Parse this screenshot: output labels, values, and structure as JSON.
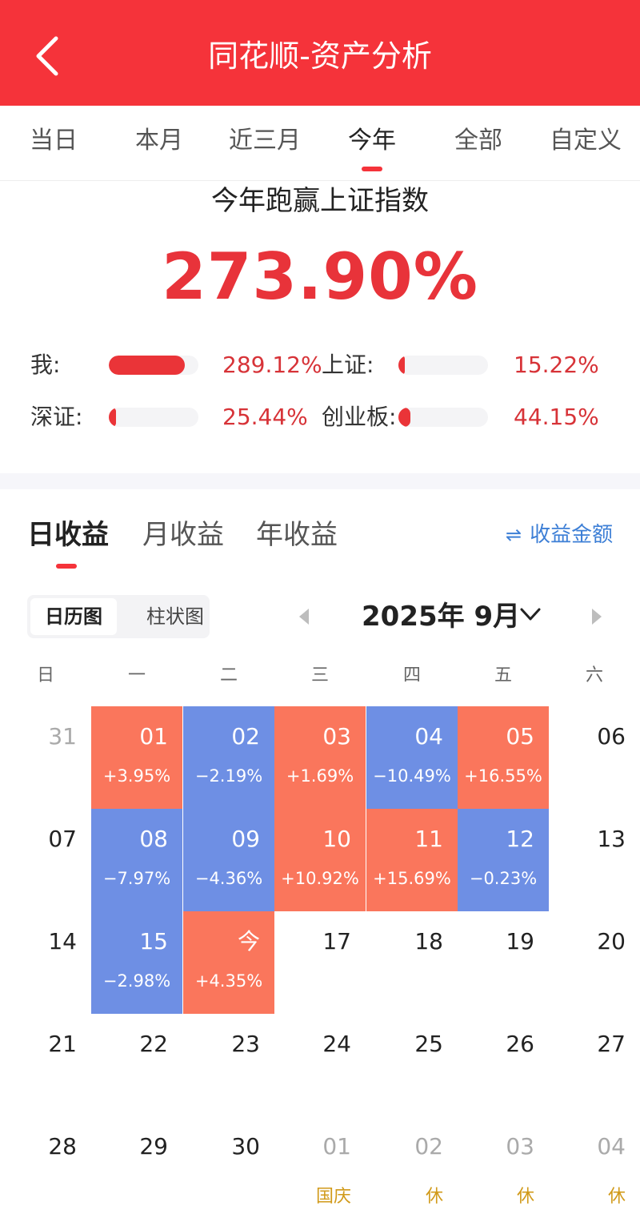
{
  "header": {
    "title": "同花顺-资产分析",
    "back_icon": "chevron-left-icon"
  },
  "period_tabs": [
    "当日",
    "本月",
    "近三月",
    "今年",
    "全部",
    "自定义"
  ],
  "active_period_tab": "今年",
  "summary": {
    "title": "今年跑赢上证指数",
    "value": "273.90%"
  },
  "comparisons": [
    {
      "label": "我:",
      "value": "289.12%",
      "fraction": 0.85
    },
    {
      "label": "上证:",
      "value": "15.22%",
      "fraction": 0.05
    },
    {
      "label": "深证:",
      "value": "25.44%",
      "fraction": 0.08
    },
    {
      "label": "创业板:",
      "value": "44.15%",
      "fraction": 0.13
    }
  ],
  "colors": {
    "accent": "#f5333a",
    "up": "#fa765c",
    "down": "#6e8fe4",
    "value_text": "#d73338",
    "link": "#3d7fd6",
    "holiday": "#d19a1a"
  },
  "return_tabs": [
    "日收益",
    "月收益",
    "年收益"
  ],
  "active_return_tab": "日收益",
  "amount_toggle": {
    "icon": "swap-arrows-icon",
    "label": "收益金额"
  },
  "view_toggle": {
    "calendar": "日历图",
    "bar": "柱状图",
    "active": "日历图"
  },
  "calendar": {
    "month_label": "2025年 9月",
    "weekdays": [
      "日",
      "一",
      "二",
      "三",
      "四",
      "五",
      "六"
    ],
    "weeks": [
      [
        {
          "day": "31",
          "muted": true
        },
        {
          "day": "01",
          "ret": "+3.95%",
          "trend": "up"
        },
        {
          "day": "02",
          "ret": "−2.19%",
          "trend": "down"
        },
        {
          "day": "03",
          "ret": "+1.69%",
          "trend": "up"
        },
        {
          "day": "04",
          "ret": "−10.49%",
          "trend": "down"
        },
        {
          "day": "05",
          "ret": "+16.55%",
          "trend": "up"
        },
        {
          "day": "06"
        }
      ],
      [
        {
          "day": "07"
        },
        {
          "day": "08",
          "ret": "−7.97%",
          "trend": "down"
        },
        {
          "day": "09",
          "ret": "−4.36%",
          "trend": "down"
        },
        {
          "day": "10",
          "ret": "+10.92%",
          "trend": "up"
        },
        {
          "day": "11",
          "ret": "+15.69%",
          "trend": "up"
        },
        {
          "day": "12",
          "ret": "−0.23%",
          "trend": "down"
        },
        {
          "day": "13"
        }
      ],
      [
        {
          "day": "14"
        },
        {
          "day": "15",
          "ret": "−2.98%",
          "trend": "down"
        },
        {
          "day": "今",
          "ret": "+4.35%",
          "trend": "up"
        },
        {
          "day": "17"
        },
        {
          "day": "18"
        },
        {
          "day": "19"
        },
        {
          "day": "20"
        }
      ],
      [
        {
          "day": "21"
        },
        {
          "day": "22"
        },
        {
          "day": "23"
        },
        {
          "day": "24"
        },
        {
          "day": "25"
        },
        {
          "day": "26"
        },
        {
          "day": "27"
        }
      ],
      [
        {
          "day": "28"
        },
        {
          "day": "29"
        },
        {
          "day": "30"
        },
        {
          "day": "01",
          "muted": true,
          "holiday": "国庆"
        },
        {
          "day": "02",
          "muted": true,
          "holiday": "休"
        },
        {
          "day": "03",
          "muted": true,
          "holiday": "休"
        },
        {
          "day": "04",
          "muted": true,
          "holiday": "休"
        }
      ]
    ]
  }
}
